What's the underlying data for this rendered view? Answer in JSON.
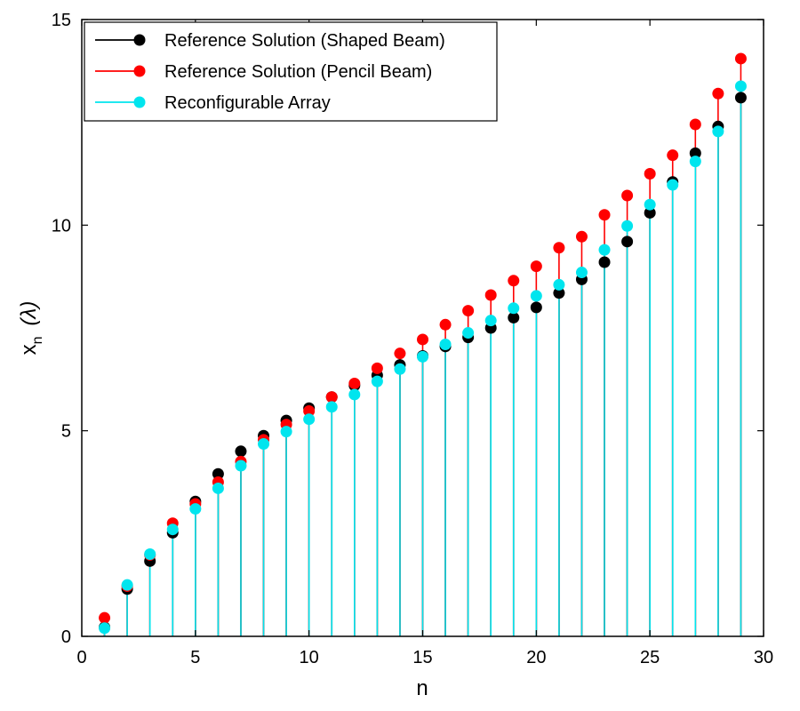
{
  "chart_data": {
    "type": "scatter",
    "style": "stem",
    "xlabel": "n",
    "ylabel": "x",
    "ylabel_subscript": "n",
    "ylabel_unit": "(λ)",
    "xlim": [
      0,
      30
    ],
    "ylim": [
      0,
      15
    ],
    "xticks": [
      0,
      5,
      10,
      15,
      20,
      25,
      30
    ],
    "yticks": [
      0,
      5,
      10,
      15
    ],
    "grid": false,
    "legend_position": "top-left",
    "x": [
      1,
      2,
      3,
      4,
      5,
      6,
      7,
      8,
      9,
      10,
      11,
      12,
      13,
      14,
      15,
      16,
      17,
      18,
      19,
      20,
      21,
      22,
      23,
      24,
      25,
      26,
      27,
      28,
      29
    ],
    "series": [
      {
        "name": "Reference Solution (Shaped Beam)",
        "color": "#000000",
        "values": [
          0.22,
          1.15,
          1.83,
          2.52,
          3.28,
          3.95,
          4.5,
          4.88,
          5.25,
          5.55,
          5.82,
          6.1,
          6.35,
          6.6,
          6.82,
          7.05,
          7.27,
          7.5,
          7.75,
          8.0,
          8.35,
          8.68,
          9.1,
          9.6,
          10.3,
          11.05,
          11.75,
          12.4,
          13.1
        ]
      },
      {
        "name": "Reference Solution (Pencil Beam)",
        "color": "#ff0000",
        "values": [
          0.45,
          1.22,
          1.98,
          2.75,
          3.22,
          3.75,
          4.25,
          4.78,
          5.15,
          5.48,
          5.82,
          6.15,
          6.52,
          6.88,
          7.22,
          7.58,
          7.92,
          8.3,
          8.65,
          9.0,
          9.45,
          9.72,
          10.25,
          10.72,
          11.25,
          11.7,
          12.45,
          13.2,
          14.05
        ]
      },
      {
        "name": "Reconfigurable Array",
        "color": "#00e5ee",
        "values": [
          0.2,
          1.25,
          2.0,
          2.6,
          3.1,
          3.6,
          4.15,
          4.68,
          4.98,
          5.28,
          5.58,
          5.88,
          6.2,
          6.5,
          6.8,
          7.1,
          7.38,
          7.68,
          7.98,
          8.28,
          8.55,
          8.85,
          9.4,
          9.98,
          10.5,
          10.98,
          11.55,
          12.28,
          13.38
        ]
      }
    ]
  }
}
